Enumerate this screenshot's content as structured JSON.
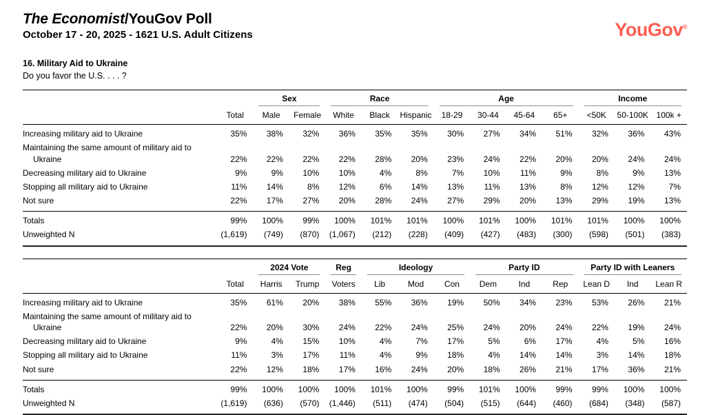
{
  "header": {
    "title_main": "The Economist",
    "title_suffix": "/YouGov Poll",
    "subtitle": "October 17 - 20, 2025 - 1621 U.S. Adult Citizens",
    "logo": "YouGov",
    "logo_mark": "®",
    "brand_color": "#fb5e50"
  },
  "question": {
    "heading": "16. Military Aid to Ukraine",
    "prompt": "Do you favor the U.S. . . . ?"
  },
  "tables": [
    {
      "name": "demographics",
      "groups": [
        {
          "label": "",
          "span": 1
        },
        {
          "label": "Sex",
          "span": 2
        },
        {
          "label": "Race",
          "span": 3
        },
        {
          "label": "Age",
          "span": 4
        },
        {
          "label": "Income",
          "span": 3
        }
      ],
      "columns": [
        "Total",
        "Male",
        "Female",
        "White",
        "Black",
        "Hispanic",
        "18-29",
        "30-44",
        "45-64",
        "65+",
        "<50K",
        "50-100K",
        "100k +"
      ],
      "rows": [
        {
          "label": "Increasing military aid to Ukraine",
          "values": [
            "35%",
            "38%",
            "32%",
            "36%",
            "35%",
            "35%",
            "30%",
            "27%",
            "34%",
            "51%",
            "32%",
            "36%",
            "43%"
          ]
        },
        {
          "label": "Maintaining the same amount of military aid to Ukraine",
          "values": [
            "22%",
            "22%",
            "22%",
            "22%",
            "28%",
            "20%",
            "23%",
            "24%",
            "22%",
            "20%",
            "20%",
            "24%",
            "24%"
          ]
        },
        {
          "label": "Decreasing military aid to Ukraine",
          "values": [
            "9%",
            "9%",
            "10%",
            "10%",
            "4%",
            "8%",
            "7%",
            "10%",
            "11%",
            "9%",
            "8%",
            "9%",
            "13%"
          ]
        },
        {
          "label": "Stopping all military aid to Ukraine",
          "values": [
            "11%",
            "14%",
            "8%",
            "12%",
            "6%",
            "14%",
            "13%",
            "11%",
            "13%",
            "8%",
            "12%",
            "12%",
            "7%"
          ]
        },
        {
          "label": "Not sure",
          "values": [
            "22%",
            "17%",
            "27%",
            "20%",
            "28%",
            "24%",
            "27%",
            "29%",
            "20%",
            "13%",
            "29%",
            "19%",
            "13%"
          ]
        }
      ],
      "totals": [
        {
          "label": "Totals",
          "values": [
            "99%",
            "100%",
            "99%",
            "100%",
            "101%",
            "101%",
            "100%",
            "101%",
            "100%",
            "101%",
            "101%",
            "100%",
            "100%"
          ]
        },
        {
          "label": "Unweighted N",
          "values": [
            "(1,619)",
            "(749)",
            "(870)",
            "(1,067)",
            "(212)",
            "(228)",
            "(409)",
            "(427)",
            "(483)",
            "(300)",
            "(598)",
            "(501)",
            "(383)"
          ]
        }
      ]
    },
    {
      "name": "politics",
      "groups": [
        {
          "label": "",
          "span": 1
        },
        {
          "label": "2024 Vote",
          "span": 2
        },
        {
          "label": "Reg",
          "span": 1
        },
        {
          "label": "Ideology",
          "span": 3
        },
        {
          "label": "Party ID",
          "span": 3
        },
        {
          "label": "Party ID with Leaners",
          "span": 3
        }
      ],
      "columns": [
        "Total",
        "Harris",
        "Trump",
        "Voters",
        "Lib",
        "Mod",
        "Con",
        "Dem",
        "Ind",
        "Rep",
        "Lean D",
        "Ind",
        "Lean R"
      ],
      "rows": [
        {
          "label": "Increasing military aid to Ukraine",
          "values": [
            "35%",
            "61%",
            "20%",
            "38%",
            "55%",
            "36%",
            "19%",
            "50%",
            "34%",
            "23%",
            "53%",
            "26%",
            "21%"
          ]
        },
        {
          "label": "Maintaining the same amount of military aid to Ukraine",
          "values": [
            "22%",
            "20%",
            "30%",
            "24%",
            "22%",
            "24%",
            "25%",
            "24%",
            "20%",
            "24%",
            "22%",
            "19%",
            "24%"
          ]
        },
        {
          "label": "Decreasing military aid to Ukraine",
          "values": [
            "9%",
            "4%",
            "15%",
            "10%",
            "4%",
            "7%",
            "17%",
            "5%",
            "6%",
            "17%",
            "4%",
            "5%",
            "16%"
          ]
        },
        {
          "label": "Stopping all military aid to Ukraine",
          "values": [
            "11%",
            "3%",
            "17%",
            "11%",
            "4%",
            "9%",
            "18%",
            "4%",
            "14%",
            "14%",
            "3%",
            "14%",
            "18%"
          ]
        },
        {
          "label": "Not sure",
          "values": [
            "22%",
            "12%",
            "18%",
            "17%",
            "16%",
            "24%",
            "20%",
            "18%",
            "26%",
            "21%",
            "17%",
            "36%",
            "21%"
          ]
        }
      ],
      "totals": [
        {
          "label": "Totals",
          "values": [
            "99%",
            "100%",
            "100%",
            "100%",
            "101%",
            "100%",
            "99%",
            "101%",
            "100%",
            "99%",
            "99%",
            "100%",
            "100%"
          ]
        },
        {
          "label": "Unweighted N",
          "values": [
            "(1,619)",
            "(636)",
            "(570)",
            "(1,446)",
            "(511)",
            "(474)",
            "(504)",
            "(515)",
            "(644)",
            "(460)",
            "(684)",
            "(348)",
            "(587)"
          ]
        }
      ]
    }
  ]
}
